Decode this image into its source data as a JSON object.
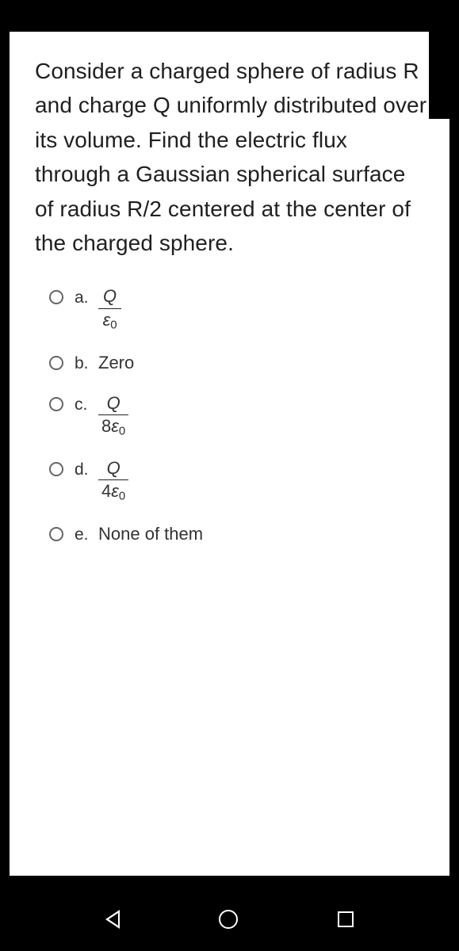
{
  "question": "Consider a charged sphere of radius R and charge Q uniformly distributed over its volume.  Find the electric flux through a Gaussian spherical surface of radius R/2 centered at the center of the charged sphere.",
  "options": {
    "a": {
      "letter": "a.",
      "type": "fraction",
      "num": "Q",
      "den_coeff": "",
      "den_sym": "ε",
      "den_sub": "0"
    },
    "b": {
      "letter": "b.",
      "type": "plain",
      "text": "Zero"
    },
    "c": {
      "letter": "c.",
      "type": "fraction",
      "num": "Q",
      "den_coeff": "8",
      "den_sym": "ε",
      "den_sub": "0"
    },
    "d": {
      "letter": "d.",
      "type": "fraction",
      "num": "Q",
      "den_coeff": "4",
      "den_sym": "ε",
      "den_sub": "0"
    },
    "e": {
      "letter": "e.",
      "type": "plain",
      "text": "None of them"
    }
  },
  "colors": {
    "page_bg": "#000000",
    "card_bg": "#ffffff",
    "text": "#202020",
    "radio_border": "#666666"
  }
}
